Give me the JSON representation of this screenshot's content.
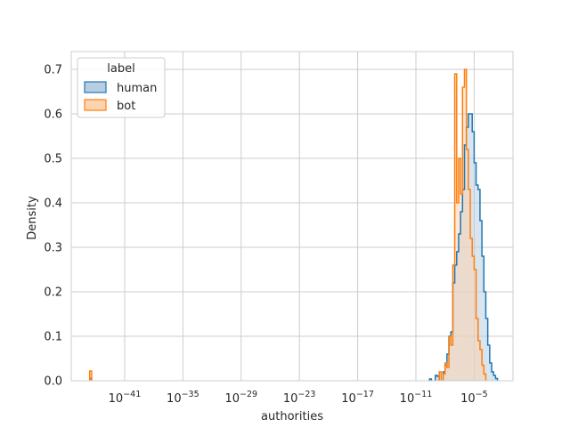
{
  "chart_data": {
    "type": "histogram",
    "xlabel": "authorities",
    "ylabel": "Density",
    "x_scale": "log",
    "xlim_exponent": [
      -46.5,
      -1.0
    ],
    "ylim": [
      0,
      0.74
    ],
    "x_ticks": [
      {
        "exp": -41,
        "base": "10",
        "sup": "−41"
      },
      {
        "exp": -35,
        "base": "10",
        "sup": "−35"
      },
      {
        "exp": -29,
        "base": "10",
        "sup": "−29"
      },
      {
        "exp": -23,
        "base": "10",
        "sup": "−23"
      },
      {
        "exp": -17,
        "base": "10",
        "sup": "−17"
      },
      {
        "exp": -11,
        "base": "10",
        "sup": "−11"
      },
      {
        "exp": -5,
        "base": "10",
        "sup": "−5"
      }
    ],
    "y_ticks": [
      {
        "value": 0.0,
        "label": "0.0"
      },
      {
        "value": 0.1,
        "label": "0.1"
      },
      {
        "value": 0.2,
        "label": "0.2"
      },
      {
        "value": 0.3,
        "label": "0.3"
      },
      {
        "value": 0.4,
        "label": "0.4"
      },
      {
        "value": 0.5,
        "label": "0.5"
      },
      {
        "value": 0.6,
        "label": "0.6"
      },
      {
        "value": 0.7,
        "label": "0.7"
      }
    ],
    "grid": true,
    "legend": {
      "title": "label",
      "placement": "top-left"
    },
    "bin_width_exp": 0.2,
    "series": [
      {
        "name": "human",
        "color": "#1f77b4",
        "fill": "#b8cde0",
        "bins": [
          [
            -44.6,
            0.005
          ],
          [
            -9.6,
            0.004
          ],
          [
            -9.0,
            0.012
          ],
          [
            -8.8,
            0.01
          ],
          [
            -8.2,
            0.02
          ],
          [
            -8.0,
            0.035
          ],
          [
            -7.8,
            0.06
          ],
          [
            -7.6,
            0.1
          ],
          [
            -7.4,
            0.11
          ],
          [
            -7.2,
            0.22
          ],
          [
            -7.0,
            0.26
          ],
          [
            -6.8,
            0.29
          ],
          [
            -6.6,
            0.33
          ],
          [
            -6.4,
            0.38
          ],
          [
            -6.2,
            0.43
          ],
          [
            -6.0,
            0.53
          ],
          [
            -5.8,
            0.57
          ],
          [
            -5.6,
            0.6
          ],
          [
            -5.4,
            0.6
          ],
          [
            -5.2,
            0.56
          ],
          [
            -5.0,
            0.49
          ],
          [
            -4.8,
            0.44
          ],
          [
            -4.6,
            0.43
          ],
          [
            -4.4,
            0.36
          ],
          [
            -4.2,
            0.28
          ],
          [
            -4.0,
            0.2
          ],
          [
            -3.8,
            0.14
          ],
          [
            -3.6,
            0.08
          ],
          [
            -3.4,
            0.04
          ],
          [
            -3.2,
            0.02
          ],
          [
            -3.0,
            0.012
          ],
          [
            -2.8,
            0.005
          ]
        ]
      },
      {
        "name": "bot",
        "color": "#ff7f0e",
        "fill": "#fdd4b0",
        "bins": [
          [
            -44.6,
            0.022
          ],
          [
            -8.6,
            0.02
          ],
          [
            -8.2,
            0.015
          ],
          [
            -8.0,
            0.04
          ],
          [
            -7.8,
            0.03
          ],
          [
            -7.6,
            0.1
          ],
          [
            -7.4,
            0.08
          ],
          [
            -7.2,
            0.26
          ],
          [
            -7.0,
            0.69
          ],
          [
            -6.8,
            0.4
          ],
          [
            -6.6,
            0.5
          ],
          [
            -6.4,
            0.42
          ],
          [
            -6.2,
            0.66
          ],
          [
            -6.0,
            0.7
          ],
          [
            -5.8,
            0.52
          ],
          [
            -5.6,
            0.43
          ],
          [
            -5.4,
            0.32
          ],
          [
            -5.2,
            0.28
          ],
          [
            -5.0,
            0.25
          ],
          [
            -4.8,
            0.14
          ],
          [
            -4.6,
            0.09
          ],
          [
            -4.4,
            0.07
          ],
          [
            -4.2,
            0.035
          ],
          [
            -4.0,
            0.015
          ]
        ]
      }
    ]
  }
}
